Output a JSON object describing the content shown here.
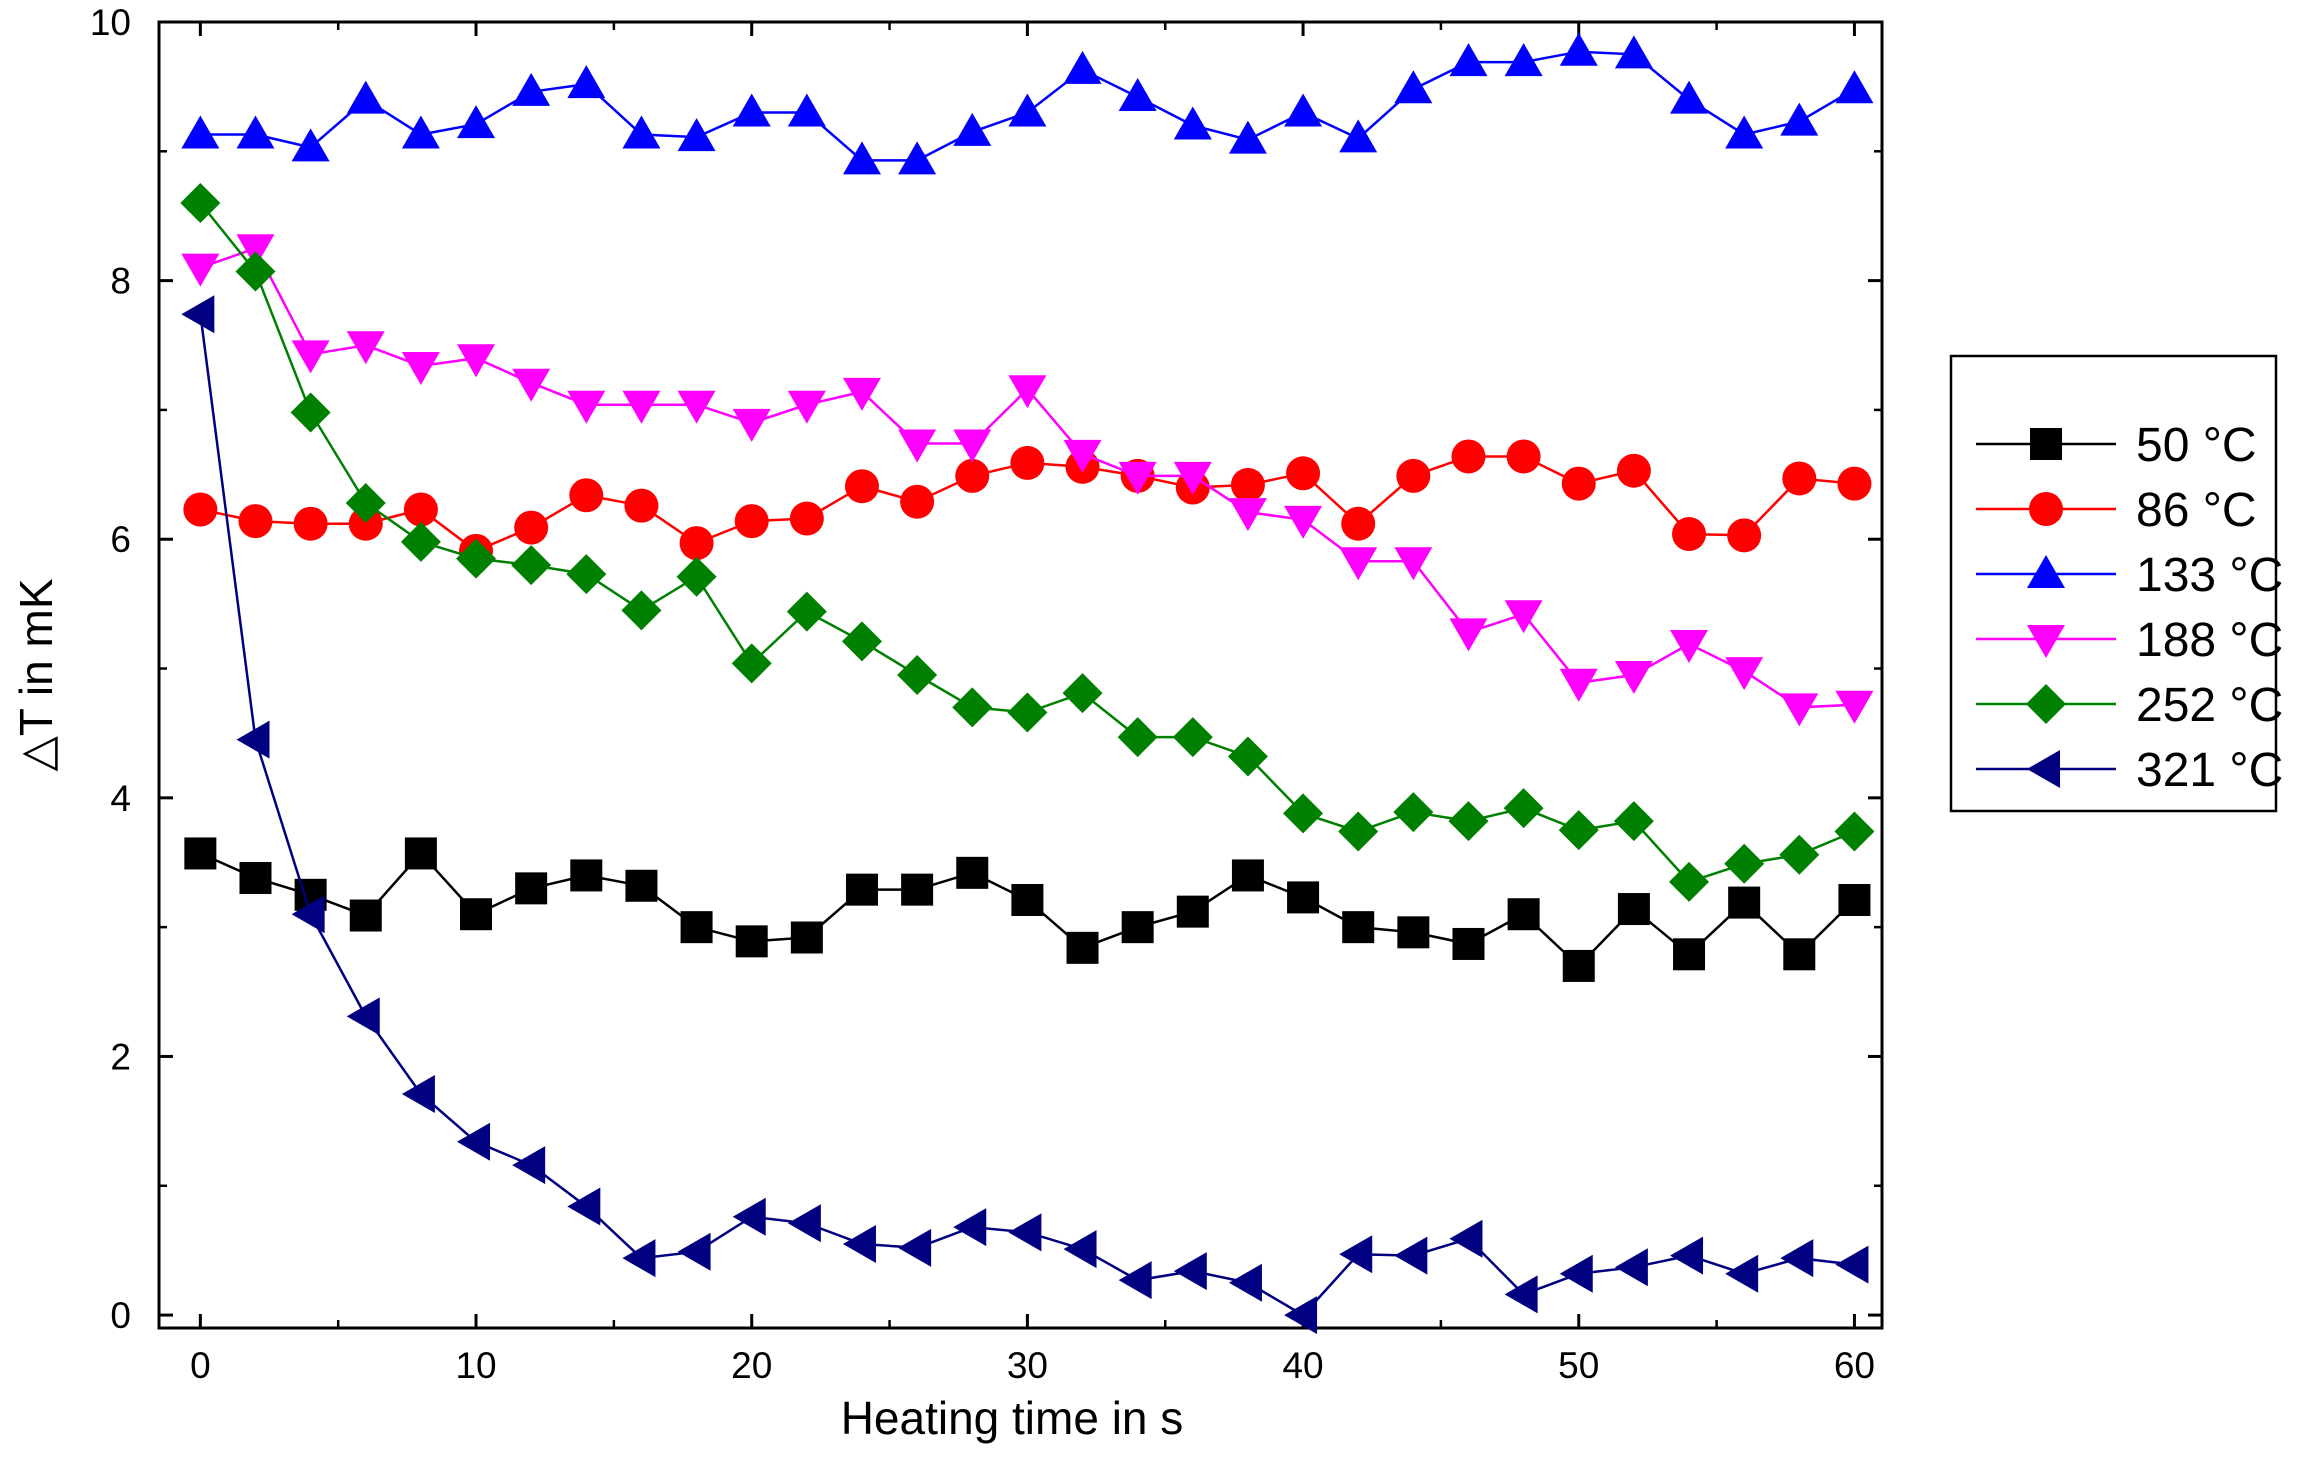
{
  "chart_data": {
    "type": "line",
    "xlabel": "Heating time in s",
    "ylabel": "△T in mK",
    "xlim": [
      -1.5,
      61
    ],
    "ylim": [
      -0.1,
      10
    ],
    "xticks": [
      0,
      10,
      20,
      30,
      40,
      50,
      60
    ],
    "yticks": [
      0,
      2,
      4,
      6,
      8,
      10
    ],
    "x": [
      0,
      2,
      4,
      6,
      8,
      10,
      12,
      14,
      16,
      18,
      20,
      22,
      24,
      26,
      28,
      30,
      32,
      34,
      36,
      38,
      40,
      42,
      44,
      46,
      48,
      50,
      52,
      54,
      56,
      58,
      60
    ],
    "grid": false,
    "legend_position": "right",
    "series": [
      {
        "name": "50 °C",
        "color": "#000000",
        "marker": "square",
        "values": [
          3.57,
          3.38,
          3.25,
          3.09,
          3.57,
          3.1,
          3.3,
          3.4,
          3.32,
          3.0,
          2.89,
          2.92,
          3.29,
          3.29,
          3.42,
          3.21,
          2.84,
          3.0,
          3.12,
          3.4,
          3.23,
          3.0,
          2.96,
          2.87,
          3.1,
          2.7,
          3.14,
          2.79,
          3.19,
          2.79,
          3.21
        ]
      },
      {
        "name": "86 °C",
        "color": "#ff0000",
        "marker": "circle",
        "values": [
          6.23,
          6.14,
          6.12,
          6.12,
          6.23,
          5.91,
          6.09,
          6.34,
          6.26,
          5.97,
          6.14,
          6.16,
          6.41,
          6.29,
          6.49,
          6.59,
          6.56,
          6.49,
          6.4,
          6.42,
          6.51,
          6.12,
          6.49,
          6.64,
          6.64,
          6.43,
          6.53,
          6.04,
          6.03,
          6.47,
          6.43
        ]
      },
      {
        "name": "133 °C",
        "color": "#0000ff",
        "marker": "triangle-up",
        "values": [
          9.13,
          9.13,
          9.03,
          9.4,
          9.13,
          9.21,
          9.46,
          9.52,
          9.13,
          9.11,
          9.3,
          9.3,
          8.93,
          8.93,
          9.15,
          9.3,
          9.63,
          9.42,
          9.2,
          9.09,
          9.3,
          9.1,
          9.48,
          9.69,
          9.69,
          9.77,
          9.75,
          9.4,
          9.13,
          9.23,
          9.48
        ]
      },
      {
        "name": "188 °C",
        "color": "#ff00ff",
        "marker": "triangle-down",
        "values": [
          8.1,
          8.25,
          7.43,
          7.5,
          7.34,
          7.4,
          7.21,
          7.04,
          7.04,
          7.04,
          6.9,
          7.04,
          7.14,
          6.74,
          6.74,
          7.16,
          6.66,
          6.49,
          6.49,
          6.21,
          6.15,
          5.83,
          5.83,
          5.28,
          5.42,
          4.89,
          4.95,
          5.19,
          4.98,
          4.7,
          4.72
        ]
      },
      {
        "name": "252 °C",
        "color": "#008000",
        "marker": "diamond",
        "values": [
          8.6,
          8.07,
          6.98,
          6.28,
          5.98,
          5.85,
          5.8,
          5.73,
          5.45,
          5.71,
          5.04,
          5.44,
          5.21,
          4.95,
          4.7,
          4.66,
          4.81,
          4.47,
          4.47,
          4.32,
          3.88,
          3.74,
          3.89,
          3.82,
          3.92,
          3.75,
          3.82,
          3.35,
          3.49,
          3.56,
          3.74
        ]
      },
      {
        "name": "321 °C",
        "color": "#000080",
        "marker": "triangle-left",
        "values": [
          7.74,
          4.45,
          3.1,
          2.31,
          1.71,
          1.34,
          1.16,
          0.84,
          0.44,
          0.49,
          0.76,
          0.71,
          0.55,
          0.52,
          0.68,
          0.64,
          0.51,
          0.27,
          0.34,
          0.25,
          0.0,
          0.47,
          0.46,
          0.59,
          0.16,
          0.32,
          0.37,
          0.46,
          0.32,
          0.44,
          0.39
        ]
      }
    ]
  }
}
